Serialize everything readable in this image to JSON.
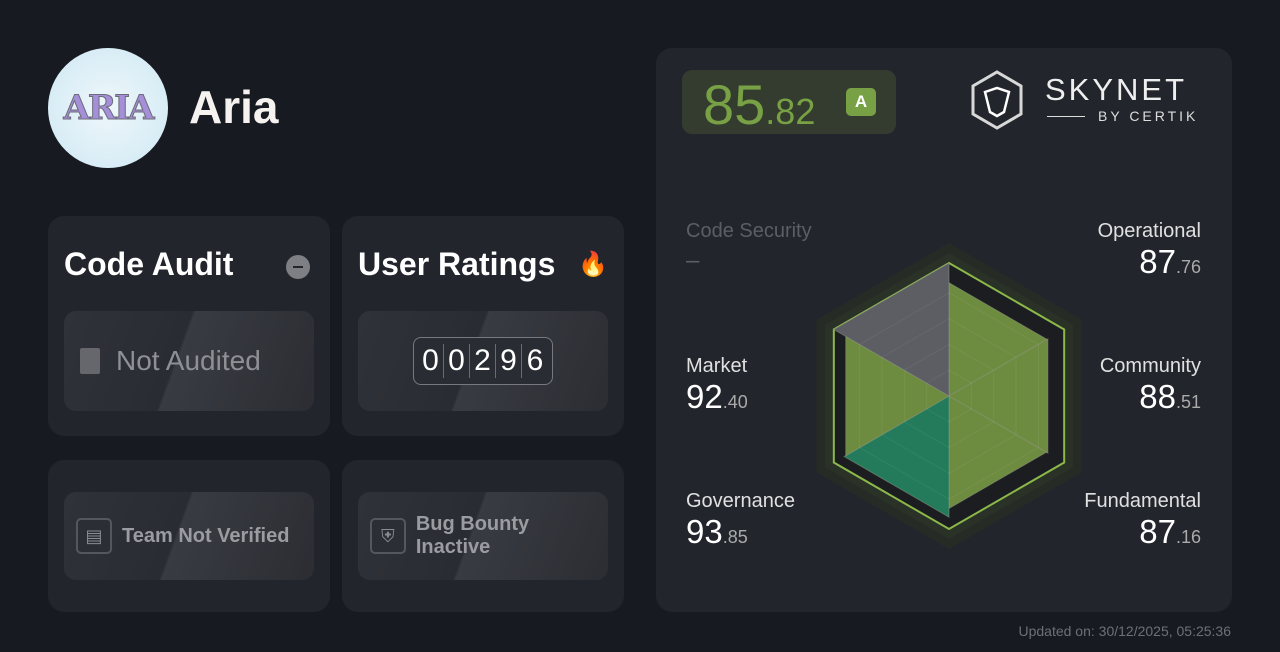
{
  "project": {
    "name": "Aria",
    "logo_text": "ARIA"
  },
  "code_audit": {
    "title": "Code Audit",
    "status_icon": "minus-circle-icon",
    "status": "Not Audited"
  },
  "user_ratings": {
    "title": "User Ratings",
    "icon": "fire-icon",
    "digits": [
      "0",
      "0",
      "2",
      "9",
      "6"
    ]
  },
  "team": {
    "label": "Team Not Verified"
  },
  "bug_bounty": {
    "label": "Bug Bounty Inactive"
  },
  "score": {
    "int": "85",
    "dec": ".82",
    "grade": "A",
    "color": "#78a044"
  },
  "brand": {
    "name": "SKYNET",
    "sub": "BY CERTIK"
  },
  "categories": [
    {
      "label": "Code Security",
      "int": "–",
      "dec": "",
      "value": null
    },
    {
      "label": "Operational",
      "int": "87",
      "dec": ".76",
      "value": 87.76
    },
    {
      "label": "Market",
      "int": "92",
      "dec": ".40",
      "value": 92.4
    },
    {
      "label": "Community",
      "int": "88",
      "dec": ".51",
      "value": 88.51
    },
    {
      "label": "Governance",
      "int": "93",
      "dec": ".85",
      "value": 93.85
    },
    {
      "label": "Fundamental",
      "int": "87",
      "dec": ".16",
      "value": 87.16
    }
  ],
  "colors": {
    "green": "#6e8c40",
    "teal": "#237b5c",
    "gray": "#5c5e64"
  },
  "updated": "Updated on: 30/12/2025, 05:25:36"
}
